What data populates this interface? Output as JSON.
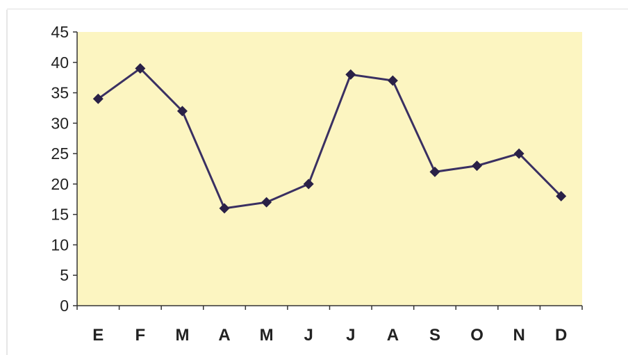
{
  "chart_data": {
    "type": "line",
    "categories": [
      "E",
      "F",
      "M",
      "A",
      "M",
      "J",
      "J",
      "A",
      "S",
      "O",
      "N",
      "D"
    ],
    "series": [
      {
        "values": [
          34,
          39,
          32,
          16,
          17,
          20,
          38,
          37,
          22,
          23,
          25,
          18
        ]
      }
    ],
    "ylim": [
      0,
      45
    ],
    "yticks": [
      "0",
      "5",
      "10",
      "15",
      "20",
      "25",
      "30",
      "35",
      "40",
      "45"
    ],
    "title": "",
    "xlabel": "",
    "ylabel": "",
    "grid": false,
    "legend": "none",
    "colors": {
      "plot_background": "#fcf5c1",
      "line": "#3a3062",
      "marker": "#2a2147",
      "axis": "#333333"
    }
  }
}
